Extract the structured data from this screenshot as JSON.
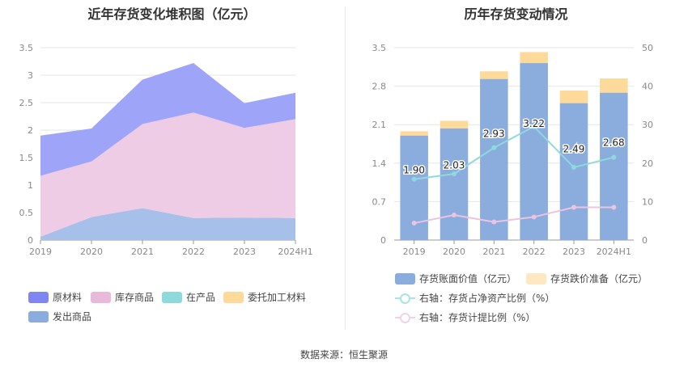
{
  "left": {
    "title": "近年存货变化堆积图（亿元）",
    "legend": [
      "原材料",
      "库存商品",
      "在产品",
      "委托加工材料",
      "发出商品"
    ]
  },
  "right": {
    "title": "历年存货变动情况",
    "legend": [
      "存货账面价值（亿元）",
      "存货跌价准备（亿元）",
      "右轴：存货占净资产比例（%）",
      "右轴：存货计提比例（%）"
    ]
  },
  "source": "数据来源：恒生聚源",
  "chart_data": [
    {
      "type": "area",
      "stacked": true,
      "title": "近年存货变化堆积图（亿元）",
      "categories": [
        "2019",
        "2020",
        "2021",
        "2022",
        "2023",
        "2024H1"
      ],
      "ylim": [
        0,
        3.5
      ],
      "yticks": [
        "0",
        "0.5",
        "1",
        "1.5",
        "2",
        "2.5",
        "3",
        "3.5"
      ],
      "grid": true,
      "legend_position": "bottom",
      "series": [
        {
          "name": "发出商品",
          "color": "#a7c0ea",
          "values": [
            0.06,
            0.42,
            0.58,
            0.4,
            0.41,
            0.4
          ]
        },
        {
          "name": "在产品",
          "color": "#8ed9dc",
          "values": [
            0.0,
            0.0,
            0.0,
            0.0,
            0.0,
            0.0
          ]
        },
        {
          "name": "库存商品",
          "color": "#efcce6",
          "values": [
            1.11,
            1.01,
            1.53,
            1.92,
            1.63,
            1.8
          ]
        },
        {
          "name": "委托加工材料",
          "color": "#fdd99a",
          "values": [
            0.0,
            0.0,
            0.0,
            0.0,
            0.0,
            0.0
          ]
        },
        {
          "name": "原材料",
          "color": "#9ea5f8",
          "values": [
            0.73,
            0.6,
            0.81,
            0.9,
            0.45,
            0.48
          ]
        }
      ]
    },
    {
      "type": "bar",
      "title": "历年存货变动情况",
      "categories": [
        "2019",
        "2020",
        "2021",
        "2022",
        "2023",
        "2024H1"
      ],
      "ylim": [
        0,
        3.5
      ],
      "yticks": [
        "0",
        "0.7",
        "1.4",
        "2.1",
        "2.8",
        "3.5"
      ],
      "y2lim": [
        0,
        50
      ],
      "y2ticks": [
        "0",
        "10",
        "20",
        "30",
        "40",
        "50"
      ],
      "legend_position": "bottom",
      "bars": [
        {
          "name": "存货账面价值（亿元）",
          "color": "#8aaddd",
          "values": [
            1.9,
            2.03,
            2.93,
            3.22,
            2.49,
            2.68
          ],
          "labels": [
            "1.90",
            "2.03",
            "2.93",
            "3.22",
            "2.49",
            "2.68"
          ]
        },
        {
          "name": "存货跌价准备（亿元）",
          "color": "#fdd99a",
          "values": [
            0.08,
            0.14,
            0.14,
            0.2,
            0.23,
            0.26
          ]
        }
      ],
      "lines": [
        {
          "name": "右轴：存货占净资产比例（%）",
          "color": "#8ed9dc",
          "axis": "right",
          "values": [
            15.8,
            17.2,
            24.0,
            29.5,
            18.9,
            21.5
          ]
        },
        {
          "name": "右轴：存货计提比例（%）",
          "color": "#eec3e0",
          "axis": "right",
          "values": [
            4.4,
            6.5,
            4.7,
            6.0,
            8.5,
            8.5
          ]
        }
      ]
    }
  ]
}
